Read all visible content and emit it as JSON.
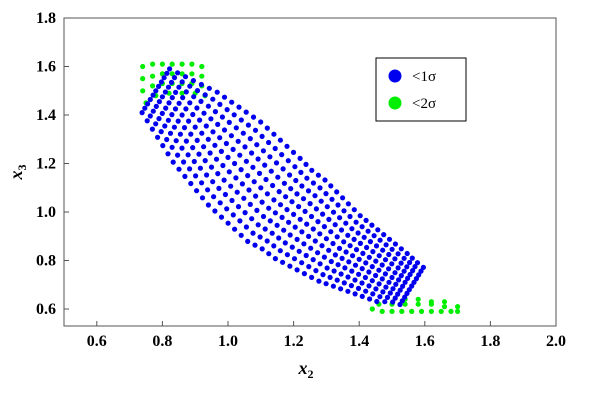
{
  "chart_data": {
    "type": "scatter",
    "xlabel": {
      "base": "x",
      "sub": "2"
    },
    "ylabel": {
      "base": "x",
      "sub": "3"
    },
    "xlim": [
      0.5,
      2.0
    ],
    "ylim": [
      0.53,
      1.8
    ],
    "xticks": [
      "0.6",
      "0.8",
      "1.0",
      "1.2",
      "1.4",
      "1.6",
      "1.8",
      "2.0"
    ],
    "yticks": [
      "0.6",
      "0.8",
      "1.0",
      "1.2",
      "1.4",
      "1.6",
      "1.8"
    ],
    "legend_position": "top-right",
    "series": [
      {
        "name": "<2σ",
        "color": "#00ee00",
        "points": [
          [
            0.74,
            1.6
          ],
          [
            0.77,
            1.61
          ],
          [
            0.8,
            1.61
          ],
          [
            0.83,
            1.61
          ],
          [
            0.86,
            1.61
          ],
          [
            0.89,
            1.61
          ],
          [
            0.92,
            1.6
          ],
          [
            0.74,
            1.55
          ],
          [
            0.77,
            1.56
          ],
          [
            0.8,
            1.57
          ],
          [
            0.83,
            1.57
          ],
          [
            0.86,
            1.57
          ],
          [
            0.89,
            1.57
          ],
          [
            0.92,
            1.56
          ],
          [
            0.74,
            1.5
          ],
          [
            0.77,
            1.52
          ],
          [
            0.8,
            1.53
          ],
          [
            0.83,
            1.53
          ],
          [
            0.86,
            1.53
          ],
          [
            0.89,
            1.53
          ],
          [
            0.92,
            1.52
          ],
          [
            0.75,
            1.45
          ],
          [
            0.78,
            1.48
          ],
          [
            0.82,
            1.49
          ],
          [
            0.86,
            1.49
          ],
          [
            0.9,
            1.49
          ],
          [
            0.93,
            1.48
          ],
          [
            1.44,
            0.6
          ],
          [
            1.47,
            0.59
          ],
          [
            1.5,
            0.59
          ],
          [
            1.53,
            0.59
          ],
          [
            1.56,
            0.59
          ],
          [
            1.59,
            0.59
          ],
          [
            1.62,
            0.59
          ],
          [
            1.65,
            0.59
          ],
          [
            1.68,
            0.59
          ],
          [
            1.7,
            0.59
          ],
          [
            1.46,
            0.62
          ],
          [
            1.5,
            0.62
          ],
          [
            1.54,
            0.62
          ],
          [
            1.58,
            0.62
          ],
          [
            1.62,
            0.62
          ],
          [
            1.66,
            0.61
          ],
          [
            1.7,
            0.61
          ],
          [
            1.54,
            0.64
          ],
          [
            1.58,
            0.64
          ],
          [
            1.62,
            0.63
          ],
          [
            1.66,
            0.63
          ]
        ]
      },
      {
        "name": "<1σ",
        "color": "#0000ee",
        "band_center": [
          [
            0.78,
            1.5
          ],
          [
            0.82,
            1.45
          ],
          [
            0.86,
            1.4
          ],
          [
            0.9,
            1.35
          ],
          [
            0.94,
            1.3
          ],
          [
            0.98,
            1.25
          ],
          [
            1.02,
            1.2
          ],
          [
            1.06,
            1.15
          ],
          [
            1.1,
            1.1
          ],
          [
            1.14,
            1.05
          ],
          [
            1.18,
            1.01
          ],
          [
            1.22,
            0.97
          ],
          [
            1.26,
            0.93
          ],
          [
            1.3,
            0.89
          ],
          [
            1.34,
            0.85
          ],
          [
            1.38,
            0.82
          ],
          [
            1.42,
            0.79
          ],
          [
            1.46,
            0.76
          ],
          [
            1.5,
            0.73
          ],
          [
            1.54,
            0.71
          ],
          [
            1.58,
            0.68
          ]
        ],
        "band_halfwidth": [
          0.1,
          0.12,
          0.14,
          0.16,
          0.17,
          0.18,
          0.19,
          0.19,
          0.19,
          0.19,
          0.18,
          0.18,
          0.17,
          0.16,
          0.15,
          0.14,
          0.13,
          0.12,
          0.11,
          0.09,
          0.08
        ]
      }
    ]
  }
}
